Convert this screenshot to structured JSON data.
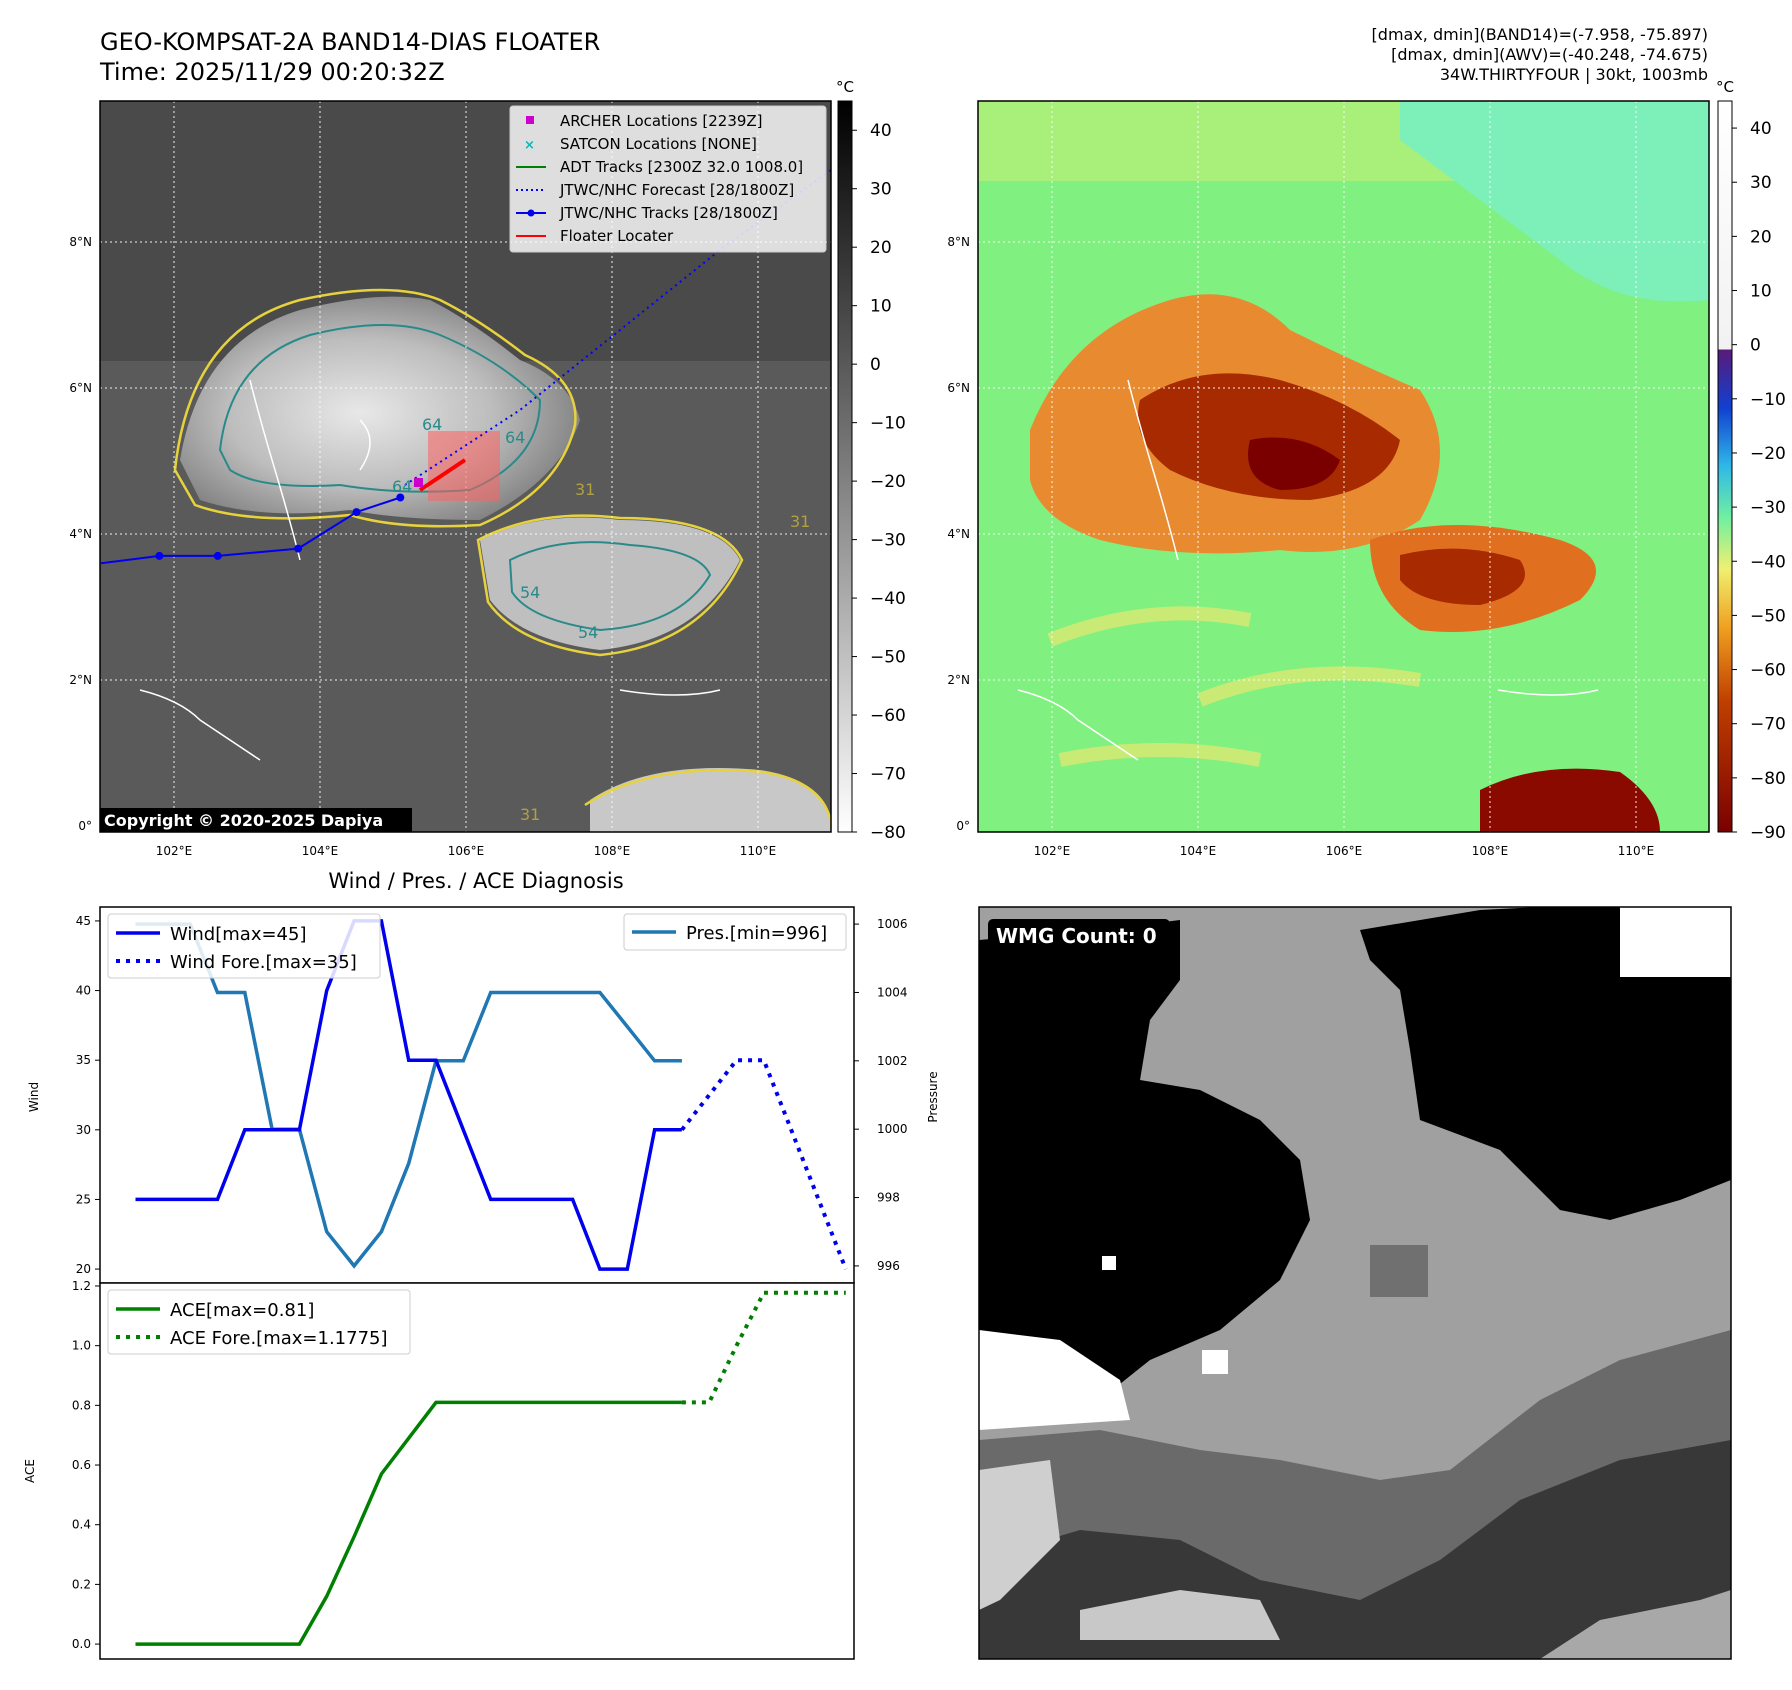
{
  "header": {
    "title_line1": "GEO-KOMPSAT-2A BAND14-DIAS FLOATER",
    "title_line2": "Time: 2025/11/29 00:20:32Z",
    "info_line1": "[dmax, dmin](BAND14)=(-7.958, -75.897)",
    "info_line2": "[dmax, dmin](AWV)=(-40.248, -74.675)",
    "info_line3": "34W.THIRTYFOUR | 30kt, 1003mb"
  },
  "map_left": {
    "colorbar_unit": "°C",
    "colorbar_ticks": [
      "40",
      "30",
      "20",
      "10",
      "0",
      "−10",
      "−20",
      "−30",
      "−40",
      "−50",
      "−60",
      "−70",
      "−80"
    ],
    "lon_labels": [
      "102°E",
      "104°E",
      "106°E",
      "108°E",
      "110°E"
    ],
    "lat_labels": [
      "8°N",
      "6°N",
      "4°N",
      "2°N",
      "0°"
    ],
    "copyright": "Copyright © 2020-2025 Dapiya",
    "legend": [
      {
        "label": "ARCHER Locations [2239Z]",
        "color": "#cc00cc",
        "marker": "square"
      },
      {
        "label": "SATCON Locations [NONE]",
        "color": "#00bbbb",
        "marker": "x"
      },
      {
        "label": "ADT Tracks [2300Z 32.0 1008.0]",
        "color": "#008000",
        "marker": "line"
      },
      {
        "label": "JTWC/NHC Forecast [28/1800Z]",
        "color": "#0000ff",
        "marker": "dotted"
      },
      {
        "label": "JTWC/NHC Tracks [28/1800Z]",
        "color": "#0000ff",
        "marker": "line-dot"
      },
      {
        "label": "Floater Locater",
        "color": "#ff0000",
        "marker": "line"
      }
    ],
    "contour_labels": [
      "64",
      "64",
      "64",
      "54",
      "54",
      "31",
      "31",
      "31"
    ],
    "track_lon": [
      101.0,
      101.8,
      102.6,
      103.7,
      104.5,
      105.1
    ],
    "track_lat": [
      3.6,
      3.7,
      3.7,
      3.8,
      4.3,
      4.5
    ]
  },
  "map_right": {
    "colorbar_unit": "°C",
    "colorbar_ticks": [
      "40",
      "30",
      "20",
      "10",
      "0",
      "−10",
      "−20",
      "−30",
      "−40",
      "−50",
      "−60",
      "−70",
      "−80",
      "−90"
    ],
    "lon_labels": [
      "102°E",
      "104°E",
      "106°E",
      "108°E",
      "110°E"
    ],
    "lat_labels": [
      "8°N",
      "6°N",
      "4°N",
      "2°N",
      "0°"
    ]
  },
  "diagnosis": {
    "title": "Wind / Pres. / ACE Diagnosis",
    "wind_ylabel": "Wind",
    "pres_ylabel": "Pressure",
    "ace_ylabel": "ACE",
    "wind_ticks": [
      "45",
      "40",
      "35",
      "30",
      "25",
      "20"
    ],
    "pres_ticks": [
      "1006",
      "1004",
      "1002",
      "1000",
      "998",
      "996"
    ],
    "ace_ticks": [
      "1.2",
      "1.0",
      "0.8",
      "0.6",
      "0.4",
      "0.2",
      "0.0"
    ],
    "legend_wind": "Wind[max=45]",
    "legend_wind_fore": "Wind Fore.[max=35]",
    "legend_pres": "Pres.[min=996]",
    "legend_ace": "ACE[max=0.81]",
    "legend_ace_fore": "ACE Fore.[max=1.1775]",
    "colors": {
      "wind": "#0000ee",
      "pres": "#1f77b4",
      "ace": "#008000"
    }
  },
  "wmg": {
    "badge": "WMG Count: 0"
  },
  "chart_data": [
    {
      "type": "line",
      "title": "Wind / Pres. / ACE Diagnosis",
      "ylabel": "Wind",
      "ylim": [
        19,
        46
      ],
      "xlim": [
        -1.3,
        26.3
      ],
      "series": [
        {
          "name": "Wind[max=45]",
          "x": [
            0,
            1,
            2,
            3,
            4,
            5,
            6,
            7,
            8,
            9,
            10,
            11,
            12,
            13,
            14,
            15,
            16,
            17,
            18,
            19,
            20
          ],
          "values": [
            25,
            25,
            25,
            25,
            30,
            30,
            30,
            40,
            45,
            45,
            35,
            35,
            30,
            25,
            25,
            25,
            25,
            20,
            20,
            30,
            30
          ]
        },
        {
          "name": "Wind Fore.[max=35]",
          "x": [
            20,
            21,
            22,
            23,
            24,
            25,
            26
          ],
          "values": [
            30,
            32.5,
            35,
            35,
            30,
            25,
            20
          ]
        }
      ]
    },
    {
      "type": "line",
      "ylabel": "Pressure",
      "ylim": [
        995.5,
        1006.5
      ],
      "series": [
        {
          "name": "Pres.[min=996]",
          "x": [
            0,
            1,
            2,
            3,
            4,
            5,
            6,
            7,
            8,
            9,
            10,
            11,
            12,
            13,
            14,
            15,
            16,
            17,
            18,
            19,
            20
          ],
          "values": [
            1006,
            1006,
            1006,
            1004,
            1004,
            1000,
            1000,
            997,
            996,
            997,
            999,
            1002,
            1002,
            1004,
            1004,
            1004,
            1004,
            1004,
            1003,
            1002,
            1002
          ]
        }
      ]
    },
    {
      "type": "line",
      "ylabel": "ACE",
      "ylim": [
        -0.05,
        1.21
      ],
      "series": [
        {
          "name": "ACE[max=0.81]",
          "x": [
            0,
            1,
            2,
            3,
            4,
            5,
            6,
            7,
            8,
            9,
            10,
            11,
            12,
            13,
            14,
            15,
            16,
            17,
            18,
            19,
            20
          ],
          "values": [
            0,
            0,
            0,
            0,
            0,
            0,
            0,
            0.16,
            0.36,
            0.57,
            0.69,
            0.81,
            0.81,
            0.81,
            0.81,
            0.81,
            0.81,
            0.81,
            0.81,
            0.81,
            0.81
          ]
        },
        {
          "name": "ACE Fore.[max=1.1775]",
          "x": [
            20,
            21,
            22,
            23,
            24,
            25,
            26
          ],
          "values": [
            0.81,
            0.81,
            1.0,
            1.1775,
            1.1775,
            1.1775,
            1.1775
          ]
        }
      ]
    }
  ]
}
